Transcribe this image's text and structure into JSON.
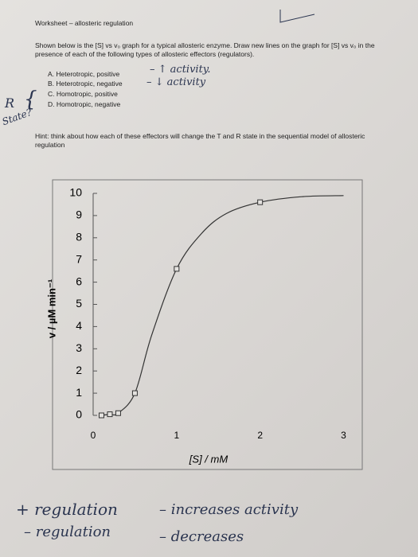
{
  "header": {
    "title": "Worksheet – allosteric regulation"
  },
  "instructions": "Shown below is the [S] vs v₀ graph for a typical allosteric enzyme. Draw new lines on the graph for [S] vs v₀ in the presence of each of the following types of allosteric effectors (regulators).",
  "items": [
    "A. Heterotropic, positive",
    "B. Heterotropic, negative",
    "C. Homotropic, positive",
    "D. Homotropic, negative"
  ],
  "hint": "Hint: think about how each of these effectors will change the T and R state in the sequential model of allosteric regulation",
  "handwriting": {
    "a_note": "– ↑ activity.",
    "b_note": "– ↓ activity",
    "r": "R",
    "state": "State?",
    "line1_left": "+ regulation",
    "line1_right": "– increases activity",
    "line2_left": "– regulation",
    "line2_right": "– decreases"
  },
  "chart_data": {
    "type": "line",
    "xlabel": "[S] / mM",
    "ylabel": "v / µM min⁻¹",
    "xlim": [
      0,
      3.1
    ],
    "ylim": [
      0,
      10
    ],
    "xticks": [
      0,
      1,
      2,
      3
    ],
    "yticks": [
      0,
      1,
      2,
      3,
      4,
      5,
      6,
      7,
      8,
      9,
      10
    ],
    "color": "#333333",
    "series": [
      {
        "marker": "none",
        "x": [
          0.1,
          0.2,
          0.3,
          0.5,
          0.7,
          1.0,
          1.3,
          1.6,
          2.0,
          2.5,
          3.0
        ],
        "values": [
          0,
          0.05,
          0.1,
          1,
          3.6,
          6.6,
          8.2,
          9.1,
          9.6,
          9.85,
          9.9
        ]
      },
      {
        "marker": "square",
        "x": [
          0.1,
          0.2,
          0.3,
          0.5,
          1.0,
          2.0
        ],
        "values": [
          0,
          0.05,
          0.1,
          1,
          6.6,
          9.6
        ]
      }
    ]
  }
}
